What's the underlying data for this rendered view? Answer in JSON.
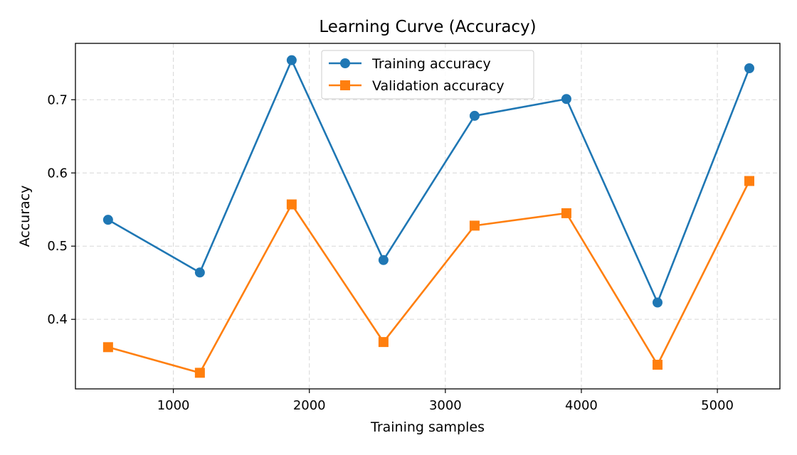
{
  "chart_data": {
    "type": "line",
    "title": "Learning Curve (Accuracy)",
    "xlabel": "Training samples",
    "ylabel": "Accuracy",
    "xlim": [
      280,
      5460
    ],
    "ylim": [
      0.305,
      0.777
    ],
    "xticks": [
      1000,
      2000,
      3000,
      4000,
      5000
    ],
    "yticks": [
      0.4,
      0.5,
      0.6,
      0.7
    ],
    "xtick_labels": [
      "1000",
      "2000",
      "3000",
      "4000",
      "5000"
    ],
    "ytick_labels": [
      "0.4",
      "0.5",
      "0.6",
      "0.7"
    ],
    "grid": true,
    "legend_position": "top-center",
    "x": [
      520,
      1195,
      1870,
      2545,
      3215,
      3890,
      4560,
      5235
    ],
    "series": [
      {
        "name": "Training accuracy",
        "color": "#1f77b4",
        "marker": "circle",
        "values": [
          0.536,
          0.464,
          0.754,
          0.481,
          0.678,
          0.701,
          0.423,
          0.743
        ]
      },
      {
        "name": "Validation accuracy",
        "color": "#ff7f0e",
        "marker": "square",
        "values": [
          0.362,
          0.327,
          0.557,
          0.369,
          0.528,
          0.545,
          0.338,
          0.589
        ]
      }
    ]
  }
}
